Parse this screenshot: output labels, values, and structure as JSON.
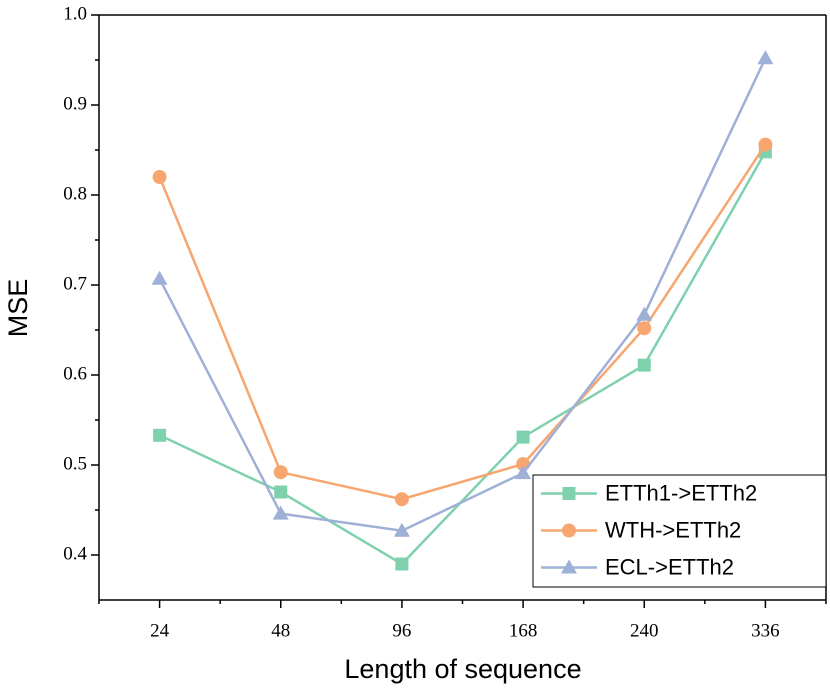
{
  "chart_data": {
    "type": "line",
    "x_label": "Length of sequence",
    "y_label": "MSE",
    "categories": [
      "24",
      "48",
      "96",
      "168",
      "240",
      "336"
    ],
    "series": [
      {
        "name": "ETTh1->ETTh2",
        "color": "#7fd1ae",
        "marker": "square",
        "values": [
          0.533,
          0.47,
          0.39,
          0.531,
          0.611,
          0.848
        ]
      },
      {
        "name": "WTH->ETTh2",
        "color": "#f6a66e",
        "marker": "circle",
        "values": [
          0.82,
          0.492,
          0.462,
          0.501,
          0.652,
          0.856
        ]
      },
      {
        "name": "ECL->ETTh2",
        "color": "#9fb0d6",
        "marker": "triangle",
        "values": [
          0.707,
          0.446,
          0.427,
          0.491,
          0.667,
          0.952
        ]
      }
    ],
    "ylim": [
      0.35,
      1.0
    ],
    "yticks": [
      0.4,
      0.5,
      0.6,
      0.7,
      0.8,
      0.9,
      {
        "value": 1.0,
        "label": "1.0"
      }
    ],
    "legend": "lower right"
  }
}
